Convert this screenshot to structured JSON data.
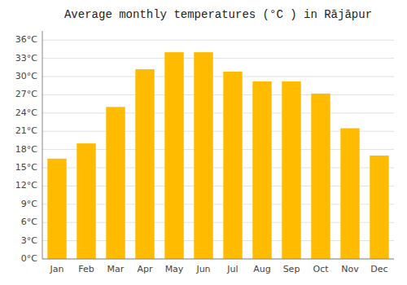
{
  "chart_data": {
    "type": "bar",
    "title": "Average monthly temperatures (°C ) in Rājāpur",
    "categories": [
      "Jan",
      "Feb",
      "Mar",
      "Apr",
      "May",
      "Jun",
      "Jul",
      "Aug",
      "Sep",
      "Oct",
      "Nov",
      "Dec"
    ],
    "values": [
      16.5,
      19.0,
      25.0,
      31.2,
      34.0,
      34.0,
      30.8,
      29.2,
      29.2,
      27.2,
      21.5,
      17.0
    ],
    "color": "#FFBB00",
    "ylim": [
      0,
      37.5
    ],
    "yticks": [
      {
        "value": 0,
        "label": "0°C"
      },
      {
        "value": 3,
        "label": "3°C"
      },
      {
        "value": 6,
        "label": "6°C"
      },
      {
        "value": 9,
        "label": "9°C"
      },
      {
        "value": 12,
        "label": "12°C"
      },
      {
        "value": 15,
        "label": "15°C"
      },
      {
        "value": 18,
        "label": "18°C"
      },
      {
        "value": 21,
        "label": "21°C"
      },
      {
        "value": 24,
        "label": "24°C"
      },
      {
        "value": 27,
        "label": "27°C"
      },
      {
        "value": 30,
        "label": "30°C"
      },
      {
        "value": 33,
        "label": "33°C"
      },
      {
        "value": 36,
        "label": "36°C"
      }
    ],
    "grid": true
  }
}
